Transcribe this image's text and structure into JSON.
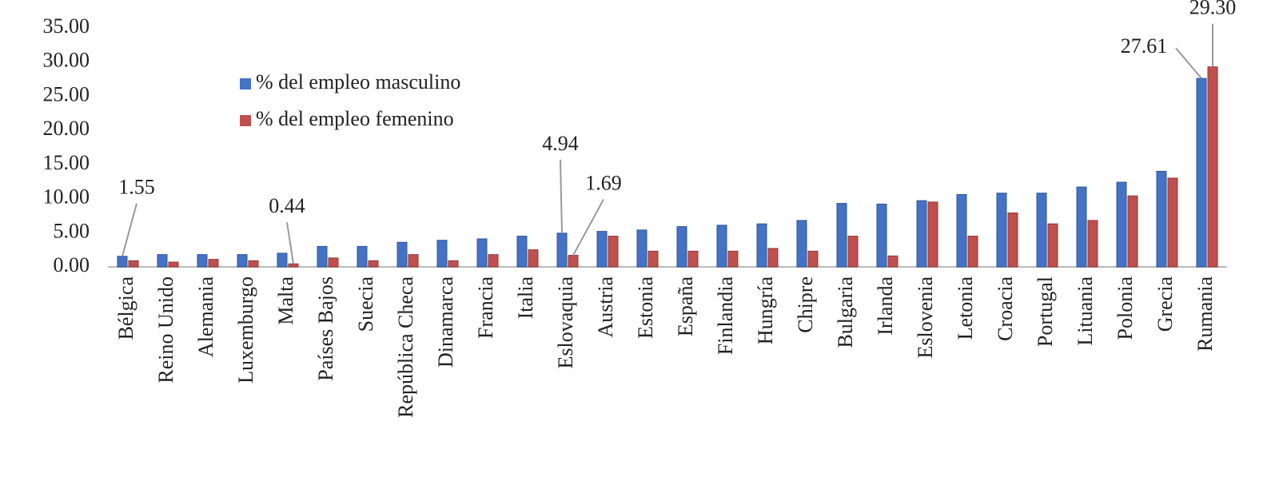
{
  "chart_data": {
    "type": "bar",
    "categories": [
      "Bélgica",
      "Reino Unido",
      "Alemania",
      "Luxemburgo",
      "Malta",
      "Países Bajos",
      "Suecia",
      "República Checa",
      "Dinamarca",
      "Francia",
      "Italia",
      "Eslovaquia",
      "Austria",
      "Estonia",
      "España",
      "Finlandia",
      "Hungría",
      "Chipre",
      "Bulgaria",
      "Irlanda",
      "Eslovenia",
      "Letonia",
      "Croacia",
      "Portugal",
      "Lituania",
      "Polonia",
      "Grecia",
      "Rumania"
    ],
    "series": [
      {
        "name": "% del empleo masculino",
        "color": "#4472c4",
        "values": [
          1.55,
          1.8,
          1.8,
          1.8,
          2.0,
          3.0,
          3.0,
          3.6,
          3.9,
          4.1,
          4.5,
          4.94,
          5.2,
          5.4,
          5.9,
          6.1,
          6.3,
          6.8,
          9.3,
          9.2,
          9.7,
          10.6,
          10.8,
          10.8,
          11.7,
          12.4,
          14.0,
          27.61
        ],
        "value_labels": [
          "1.55",
          null,
          null,
          null,
          null,
          null,
          null,
          null,
          null,
          null,
          null,
          "4.94",
          null,
          null,
          null,
          null,
          null,
          null,
          null,
          null,
          null,
          null,
          null,
          null,
          null,
          null,
          null,
          "27.61"
        ]
      },
      {
        "name": "% del empleo femenino",
        "color": "#c0504d",
        "values": [
          0.9,
          0.7,
          1.1,
          0.9,
          0.44,
          1.3,
          0.9,
          1.8,
          0.9,
          1.8,
          2.5,
          1.69,
          4.5,
          2.3,
          2.3,
          2.3,
          2.7,
          2.3,
          4.5,
          1.6,
          9.5,
          4.5,
          7.9,
          6.3,
          6.8,
          10.4,
          13.0,
          29.3
        ],
        "value_labels": [
          null,
          null,
          null,
          null,
          "0.44",
          null,
          null,
          null,
          null,
          null,
          null,
          "1.69",
          null,
          null,
          null,
          null,
          null,
          null,
          null,
          null,
          null,
          null,
          null,
          null,
          null,
          null,
          null,
          "29.30"
        ]
      }
    ],
    "ylim": [
      0,
      35
    ],
    "yticks": [
      {
        "value": 0,
        "label": "0.00"
      },
      {
        "value": 5,
        "label": "5.00"
      },
      {
        "value": 10,
        "label": "10.00"
      },
      {
        "value": 15,
        "label": "15.00"
      },
      {
        "value": 20,
        "label": "20.00"
      },
      {
        "value": 25,
        "label": "25.00"
      },
      {
        "value": 30,
        "label": "30.00"
      },
      {
        "value": 35,
        "label": "35.00"
      }
    ]
  }
}
